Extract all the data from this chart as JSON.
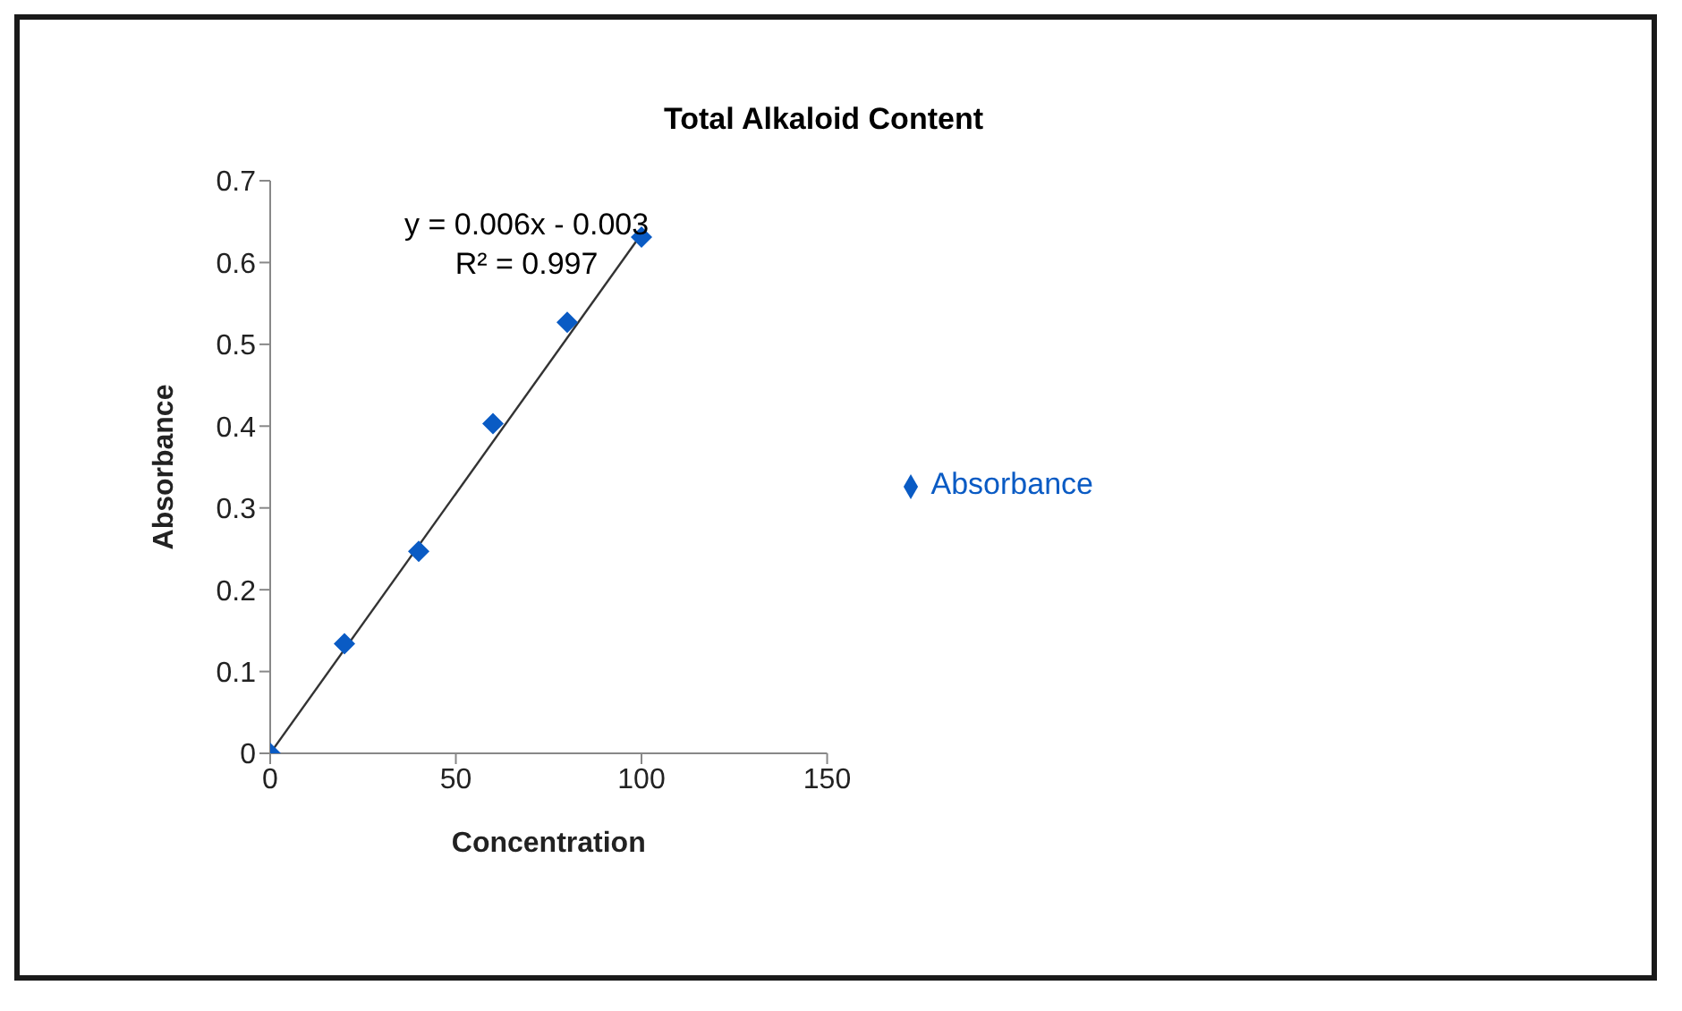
{
  "chart_data": {
    "type": "scatter",
    "title": "Total Alkaloid Content",
    "xlabel": "Concentration",
    "ylabel": "Absorbance",
    "x": [
      0,
      20,
      40,
      60,
      80,
      100
    ],
    "series": [
      {
        "name": "Absorbance",
        "color": "#0a5bc4",
        "marker": "diamond",
        "values": [
          0,
          0.134,
          0.247,
          0.403,
          0.527,
          0.631
        ]
      },
      {
        "type": "line",
        "color": "#333333",
        "marker": "none",
        "x": [
          0,
          100
        ],
        "values": [
          0,
          0.635
        ]
      }
    ],
    "annotations": [
      "y = 0.006x - 0.003",
      "R² = 0.997"
    ],
    "xlim": [
      0,
      150
    ],
    "xticks": [
      0,
      50,
      100,
      150
    ],
    "ylim": [
      0,
      0.7
    ],
    "yticks": [
      0,
      0.1,
      0.2,
      0.3,
      0.4,
      0.5,
      0.6,
      0.7
    ],
    "legend": "right",
    "grid": false
  }
}
